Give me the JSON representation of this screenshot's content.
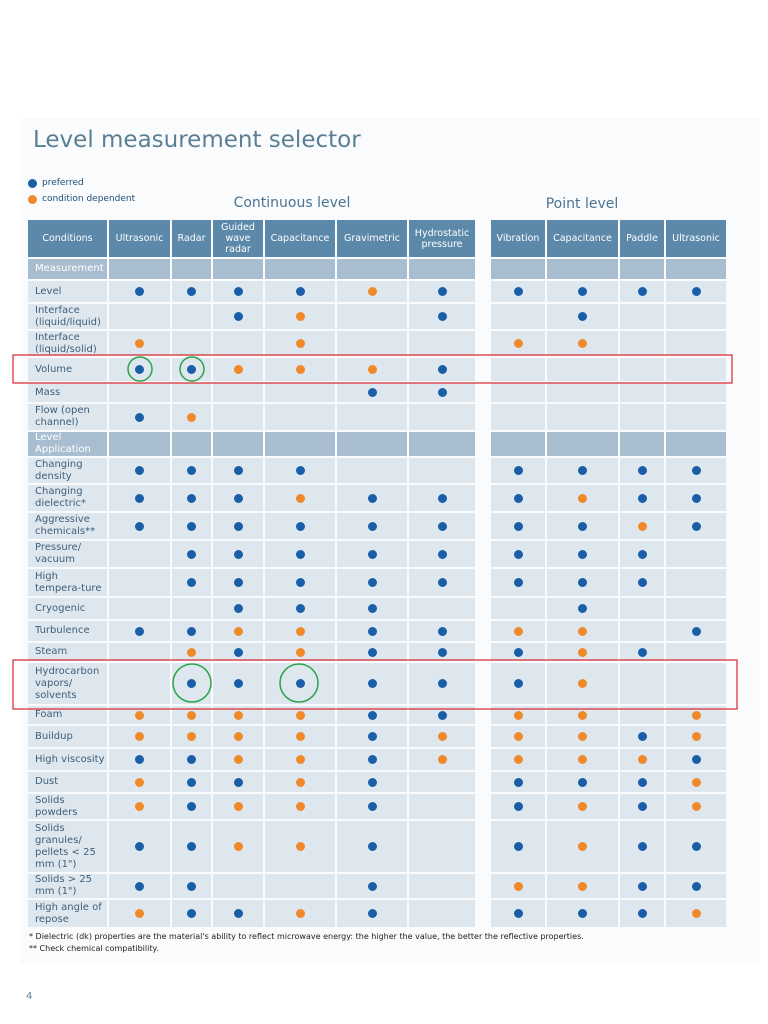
{
  "title": "Level measurement selector",
  "legend": [
    {
      "label": "preferred",
      "color": "#1a5ea8"
    },
    {
      "label": "condition dependent",
      "color": "#f0892a"
    }
  ],
  "groups": [
    {
      "label": "Continuous level"
    },
    {
      "label": "Point level"
    }
  ],
  "columns": [
    "Conditions",
    "Ultrasonic",
    "Radar",
    "Guided wave radar",
    "Capacitance",
    "Gravimetric",
    "Hydrostatic pressure",
    "Vibration",
    "Capacitance",
    "Paddle",
    "Ultrasonic"
  ],
  "sections": [
    {
      "label": "Measurement",
      "rows": [
        {
          "label": "Level",
          "cells": [
            0,
            0,
            0,
            0,
            1,
            0,
            0,
            0,
            0,
            0
          ]
        },
        {
          "label": "Interface (liquid/liquid)",
          "cells": [
            null,
            null,
            0,
            1,
            null,
            0,
            null,
            0,
            null,
            null
          ]
        },
        {
          "label": "Interface (liquid/solid)",
          "cells": [
            1,
            null,
            null,
            1,
            null,
            null,
            1,
            1,
            null,
            null
          ]
        },
        {
          "label": "Volume",
          "cells": [
            0,
            0,
            1,
            1,
            1,
            0,
            null,
            null,
            null,
            null
          ]
        },
        {
          "label": "Mass",
          "cells": [
            null,
            null,
            null,
            null,
            0,
            0,
            null,
            null,
            null,
            null
          ]
        },
        {
          "label": "Flow (open channel)",
          "cells": [
            0,
            1,
            null,
            null,
            null,
            null,
            null,
            null,
            null,
            null
          ]
        }
      ]
    },
    {
      "label": "Level Application",
      "rows": [
        {
          "label": "Changing density",
          "cells": [
            0,
            0,
            0,
            0,
            null,
            null,
            0,
            0,
            0,
            0
          ]
        },
        {
          "label": "Changing dielectric*",
          "cells": [
            0,
            0,
            0,
            1,
            0,
            0,
            0,
            1,
            0,
            0
          ]
        },
        {
          "label": "Aggressive chemicals**",
          "cells": [
            0,
            0,
            0,
            0,
            0,
            0,
            0,
            0,
            1,
            0
          ]
        },
        {
          "label": "Pressure/ vacuum",
          "cells": [
            null,
            0,
            0,
            0,
            0,
            0,
            0,
            0,
            0,
            null
          ]
        },
        {
          "label": "High tempera-ture",
          "cells": [
            null,
            0,
            0,
            0,
            0,
            0,
            0,
            0,
            0,
            null
          ]
        },
        {
          "label": "Cryogenic",
          "cells": [
            null,
            null,
            0,
            0,
            0,
            null,
            null,
            0,
            null,
            null
          ]
        },
        {
          "label": "Turbulence",
          "cells": [
            0,
            0,
            1,
            1,
            0,
            0,
            1,
            1,
            null,
            0
          ]
        },
        {
          "label": "Steam",
          "cells": [
            null,
            1,
            0,
            1,
            0,
            0,
            0,
            1,
            0,
            null
          ]
        },
        {
          "label": "Hydrocarbon vapors/ solvents",
          "cells": [
            null,
            0,
            0,
            0,
            0,
            0,
            0,
            1,
            null,
            null
          ]
        },
        {
          "label": "Foam",
          "cells": [
            1,
            1,
            1,
            1,
            0,
            0,
            1,
            1,
            null,
            1
          ]
        },
        {
          "label": "Buildup",
          "cells": [
            1,
            1,
            1,
            1,
            0,
            1,
            1,
            1,
            0,
            1
          ]
        },
        {
          "label": "High viscosity",
          "cells": [
            0,
            0,
            1,
            1,
            0,
            1,
            1,
            1,
            1,
            0
          ]
        },
        {
          "label": "Dust",
          "cells": [
            1,
            0,
            0,
            1,
            0,
            null,
            0,
            0,
            0,
            1
          ]
        },
        {
          "label": "Solids powders",
          "cells": [
            1,
            0,
            1,
            1,
            0,
            null,
            0,
            1,
            0,
            1
          ]
        },
        {
          "label": "Solids granules/ pellets < 25 mm (1\")",
          "cells": [
            0,
            0,
            1,
            1,
            0,
            null,
            0,
            1,
            0,
            0
          ]
        },
        {
          "label": "Solids > 25 mm (1\")",
          "cells": [
            0,
            0,
            null,
            null,
            0,
            null,
            1,
            1,
            0,
            0
          ]
        },
        {
          "label": "High angle of repose",
          "cells": [
            1,
            0,
            0,
            1,
            0,
            null,
            0,
            0,
            0,
            1
          ]
        }
      ]
    }
  ],
  "footnotes": [
    "* Dielectric (dk) properties are the material's ability to reflect microwave energy: the higher the value, the better the reflective properties.",
    "** Check chemical compatibility."
  ],
  "page_number": "4"
}
